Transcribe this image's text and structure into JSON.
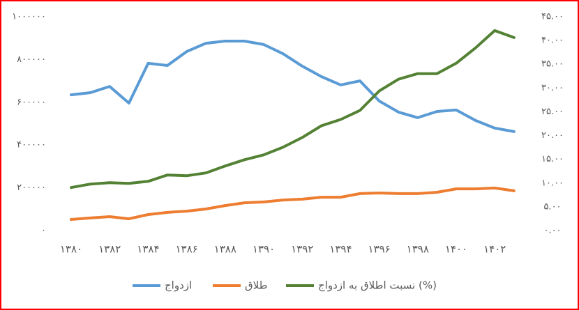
{
  "chart_data": {
    "type": "line",
    "categories": [
      "۱۳۸۰",
      null,
      "۱۳۸۲",
      null,
      "۱۳۸۴",
      null,
      "۱۳۸۶",
      null,
      "۱۳۸۸",
      null,
      "۱۳۹۰",
      null,
      "۱۳۹۲",
      null,
      "۱۳۹۴",
      null,
      "۱۳۹۶",
      null,
      "۱۳۹۸",
      null,
      "۱۴۰۰",
      null,
      "۱۴۰۲",
      null
    ],
    "series": [
      {
        "name": "ازدواج",
        "color": "#5b9bd5",
        "values": [
          635000,
          645000,
          674000,
          596000,
          782000,
          772000,
          837000,
          876000,
          886000,
          886000,
          870000,
          827000,
          769000,
          720000,
          681000,
          700000,
          606000,
          554000,
          528000,
          557000,
          564000,
          515000,
          479000,
          463000
        ]
      },
      {
        "name": "طلاق",
        "color": "#ed7d31",
        "values": [
          52000,
          59000,
          65000,
          55000,
          75000,
          85000,
          91000,
          101000,
          117000,
          130000,
          134000,
          143000,
          147000,
          156000,
          156000,
          173000,
          176000,
          173000,
          173000,
          179000,
          195000,
          195000,
          199000,
          186000
        ]
      },
      {
        "name": "نسبت اطلاق به ازدواج (%)",
        "color": "#548235",
        "axis": "y2",
        "values": [
          9.06,
          9.79,
          10.08,
          9.94,
          10.37,
          11.69,
          11.54,
          12.13,
          13.59,
          14.9,
          15.93,
          17.53,
          19.58,
          22.06,
          23.38,
          25.28,
          29.37,
          31.85,
          33.02,
          33.02,
          35.21,
          38.43,
          42.08,
          40.62
        ]
      }
    ],
    "ylim": [
      0,
      1000000
    ],
    "yticks": [
      {
        "value": 0,
        "label": "۰"
      },
      {
        "value": 200000,
        "label": "۲۰۰۰۰۰"
      },
      {
        "value": 400000,
        "label": "۴۰۰۰۰۰"
      },
      {
        "value": 600000,
        "label": "۶۰۰۰۰۰"
      },
      {
        "value": 800000,
        "label": "۸۰۰۰۰۰"
      },
      {
        "value": 1000000,
        "label": "۱۰۰۰۰۰۰"
      }
    ],
    "y2lim": [
      0,
      45
    ],
    "y2ticks": [
      {
        "value": 0,
        "label": "۰.۰۰"
      },
      {
        "value": 5,
        "label": "۵.۰۰"
      },
      {
        "value": 10,
        "label": "۱۰.۰۰"
      },
      {
        "value": 15,
        "label": "۱۵.۰۰"
      },
      {
        "value": 20,
        "label": "۲۰.۰۰"
      },
      {
        "value": 25,
        "label": "۲۵.۰۰"
      },
      {
        "value": 30,
        "label": "۳۰.۰۰"
      },
      {
        "value": 35,
        "label": "۳۵.۰۰"
      },
      {
        "value": 40,
        "label": "۴۰.۰۰"
      },
      {
        "value": 45,
        "label": "۴۵.۰۰"
      }
    ],
    "grid": false,
    "legend": "bottom"
  }
}
